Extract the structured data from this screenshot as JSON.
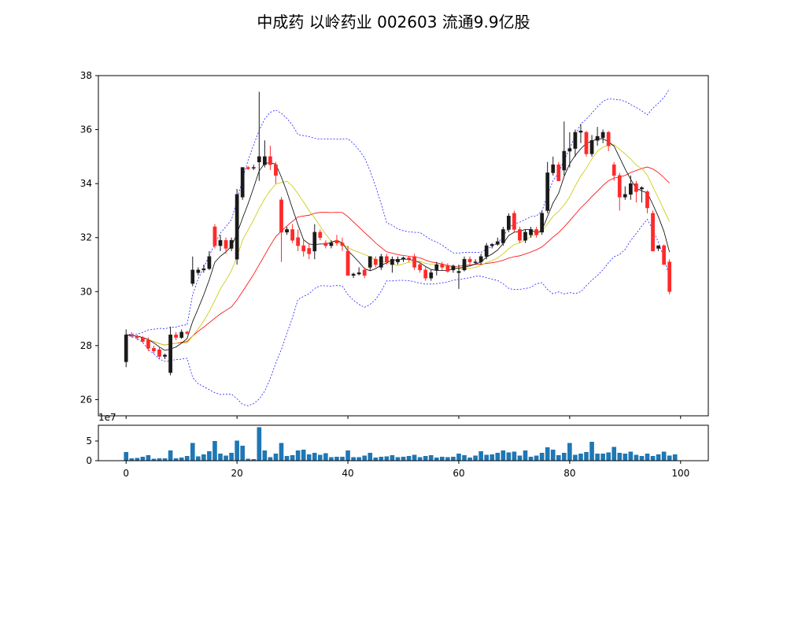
{
  "chart_data": [
    {
      "type": "candlestick",
      "title": "中成药 以岭药业 002603 流通9.9亿股",
      "x": [
        0,
        1,
        2,
        3,
        4,
        5,
        6,
        7,
        8,
        9,
        10,
        11,
        12,
        13,
        14,
        15,
        16,
        17,
        18,
        19,
        20,
        21,
        22,
        23,
        24,
        25,
        26,
        27,
        28,
        29,
        30,
        31,
        32,
        33,
        34,
        35,
        36,
        37,
        38,
        39,
        40,
        41,
        42,
        43,
        44,
        45,
        46,
        47,
        48,
        49,
        50,
        51,
        52,
        53,
        54,
        55,
        56,
        57,
        58,
        59,
        60,
        61,
        62,
        63,
        64,
        65,
        66,
        67,
        68,
        69,
        70,
        71,
        72,
        73,
        74,
        75,
        76,
        77,
        78,
        79,
        80,
        81,
        82,
        83,
        84,
        85,
        86,
        87,
        88,
        89,
        90,
        91,
        92,
        93,
        94,
        95,
        96,
        97,
        98,
        99
      ],
      "candles": [
        {
          "o": 27.4,
          "h": 28.6,
          "l": 27.2,
          "c": 28.4
        },
        {
          "o": 28.4,
          "h": 28.5,
          "l": 28.3,
          "c": 28.35
        },
        {
          "o": 28.35,
          "h": 28.4,
          "l": 28.2,
          "c": 28.3
        },
        {
          "o": 28.3,
          "h": 28.35,
          "l": 28.1,
          "c": 28.15
        },
        {
          "o": 28.2,
          "h": 28.3,
          "l": 27.8,
          "c": 27.9
        },
        {
          "o": 27.9,
          "h": 28.0,
          "l": 27.7,
          "c": 27.8
        },
        {
          "o": 27.85,
          "h": 27.95,
          "l": 27.5,
          "c": 27.6
        },
        {
          "o": 27.6,
          "h": 27.7,
          "l": 27.5,
          "c": 27.65
        },
        {
          "o": 27.0,
          "h": 28.7,
          "l": 26.9,
          "c": 28.4
        },
        {
          "o": 28.4,
          "h": 28.5,
          "l": 28.2,
          "c": 28.3
        },
        {
          "o": 28.3,
          "h": 28.6,
          "l": 28.25,
          "c": 28.5
        },
        {
          "o": 28.5,
          "h": 28.55,
          "l": 28.4,
          "c": 28.45
        },
        {
          "o": 30.3,
          "h": 31.3,
          "l": 30.2,
          "c": 30.8
        },
        {
          "o": 30.7,
          "h": 30.9,
          "l": 30.6,
          "c": 30.8
        },
        {
          "o": 30.8,
          "h": 31.0,
          "l": 30.7,
          "c": 30.85
        },
        {
          "o": 30.85,
          "h": 31.5,
          "l": 30.8,
          "c": 31.3
        },
        {
          "o": 32.4,
          "h": 32.5,
          "l": 31.6,
          "c": 31.7
        },
        {
          "o": 31.7,
          "h": 32.1,
          "l": 31.5,
          "c": 31.9
        },
        {
          "o": 31.9,
          "h": 32.0,
          "l": 31.4,
          "c": 31.6
        },
        {
          "o": 31.6,
          "h": 32.0,
          "l": 31.5,
          "c": 31.9
        },
        {
          "o": 31.2,
          "h": 33.8,
          "l": 31.0,
          "c": 33.6
        },
        {
          "o": 33.5,
          "h": 34.6,
          "l": 33.4,
          "c": 34.6
        },
        {
          "o": 34.6,
          "h": 34.65,
          "l": 34.5,
          "c": 34.55
        },
        {
          "o": 34.6,
          "h": 34.7,
          "l": 34.5,
          "c": 34.6
        },
        {
          "o": 34.8,
          "h": 37.4,
          "l": 34.1,
          "c": 35.0
        },
        {
          "o": 34.7,
          "h": 35.6,
          "l": 34.6,
          "c": 35.0
        },
        {
          "o": 35.0,
          "h": 35.4,
          "l": 34.5,
          "c": 34.7
        },
        {
          "o": 34.7,
          "h": 34.8,
          "l": 34.0,
          "c": 34.3
        },
        {
          "o": 33.4,
          "h": 33.5,
          "l": 31.1,
          "c": 32.2
        },
        {
          "o": 32.2,
          "h": 32.4,
          "l": 32.1,
          "c": 32.3
        },
        {
          "o": 32.3,
          "h": 32.5,
          "l": 31.8,
          "c": 31.9
        },
        {
          "o": 32.0,
          "h": 32.3,
          "l": 31.5,
          "c": 31.7
        },
        {
          "o": 31.7,
          "h": 31.9,
          "l": 31.3,
          "c": 31.5
        },
        {
          "o": 31.6,
          "h": 31.8,
          "l": 31.2,
          "c": 31.4
        },
        {
          "o": 31.5,
          "h": 32.5,
          "l": 31.2,
          "c": 32.2
        },
        {
          "o": 32.2,
          "h": 32.3,
          "l": 31.9,
          "c": 32.0
        },
        {
          "o": 31.8,
          "h": 31.9,
          "l": 31.6,
          "c": 31.7
        },
        {
          "o": 31.7,
          "h": 31.9,
          "l": 31.6,
          "c": 31.8
        },
        {
          "o": 31.9,
          "h": 32.1,
          "l": 31.7,
          "c": 31.8
        },
        {
          "o": 31.8,
          "h": 32.0,
          "l": 31.5,
          "c": 31.7
        },
        {
          "o": 31.5,
          "h": 31.7,
          "l": 30.6,
          "c": 30.6
        },
        {
          "o": 30.6,
          "h": 30.7,
          "l": 30.5,
          "c": 30.65
        },
        {
          "o": 30.65,
          "h": 30.9,
          "l": 30.6,
          "c": 30.7
        },
        {
          "o": 30.8,
          "h": 30.9,
          "l": 30.5,
          "c": 30.6
        },
        {
          "o": 30.9,
          "h": 31.3,
          "l": 30.8,
          "c": 31.3
        },
        {
          "o": 31.2,
          "h": 31.3,
          "l": 30.9,
          "c": 31.0
        },
        {
          "o": 30.9,
          "h": 31.4,
          "l": 30.8,
          "c": 31.3
        },
        {
          "o": 31.3,
          "h": 31.4,
          "l": 31.0,
          "c": 31.1
        },
        {
          "o": 31.0,
          "h": 31.3,
          "l": 30.7,
          "c": 31.2
        },
        {
          "o": 31.1,
          "h": 31.3,
          "l": 31.0,
          "c": 31.2
        },
        {
          "o": 31.2,
          "h": 31.3,
          "l": 31.1,
          "c": 31.25
        },
        {
          "o": 31.25,
          "h": 31.3,
          "l": 31.1,
          "c": 31.2
        },
        {
          "o": 31.3,
          "h": 31.4,
          "l": 30.8,
          "c": 30.9
        },
        {
          "o": 31.0,
          "h": 31.1,
          "l": 30.7,
          "c": 30.8
        },
        {
          "o": 30.8,
          "h": 30.9,
          "l": 30.4,
          "c": 30.5
        },
        {
          "o": 30.5,
          "h": 30.8,
          "l": 30.4,
          "c": 30.7
        },
        {
          "o": 30.8,
          "h": 31.1,
          "l": 30.6,
          "c": 31.0
        },
        {
          "o": 31.0,
          "h": 31.1,
          "l": 30.8,
          "c": 30.9
        },
        {
          "o": 30.95,
          "h": 31.05,
          "l": 30.7,
          "c": 30.75
        },
        {
          "o": 30.8,
          "h": 31.0,
          "l": 30.7,
          "c": 30.95
        },
        {
          "o": 30.7,
          "h": 31.0,
          "l": 30.1,
          "c": 30.75
        },
        {
          "o": 30.8,
          "h": 31.3,
          "l": 30.75,
          "c": 31.2
        },
        {
          "o": 31.2,
          "h": 31.3,
          "l": 31.0,
          "c": 31.1
        },
        {
          "o": 31.1,
          "h": 31.2,
          "l": 31.0,
          "c": 31.1
        },
        {
          "o": 31.1,
          "h": 31.4,
          "l": 31.0,
          "c": 31.3
        },
        {
          "o": 31.3,
          "h": 31.8,
          "l": 31.2,
          "c": 31.7
        },
        {
          "o": 31.7,
          "h": 31.8,
          "l": 31.6,
          "c": 31.75
        },
        {
          "o": 31.75,
          "h": 32.0,
          "l": 31.7,
          "c": 31.85
        },
        {
          "o": 31.8,
          "h": 32.4,
          "l": 31.7,
          "c": 32.3
        },
        {
          "o": 32.3,
          "h": 32.9,
          "l": 32.2,
          "c": 32.8
        },
        {
          "o": 32.9,
          "h": 33.0,
          "l": 32.2,
          "c": 32.3
        },
        {
          "o": 32.3,
          "h": 32.4,
          "l": 31.8,
          "c": 31.9
        },
        {
          "o": 31.9,
          "h": 32.3,
          "l": 31.8,
          "c": 32.2
        },
        {
          "o": 32.1,
          "h": 32.4,
          "l": 32.0,
          "c": 32.3
        },
        {
          "o": 32.3,
          "h": 32.4,
          "l": 32.0,
          "c": 32.1
        },
        {
          "o": 32.2,
          "h": 33.0,
          "l": 32.1,
          "c": 32.9
        },
        {
          "o": 33.0,
          "h": 34.8,
          "l": 32.9,
          "c": 34.4
        },
        {
          "o": 34.4,
          "h": 35.0,
          "l": 34.3,
          "c": 34.7
        },
        {
          "o": 34.7,
          "h": 34.8,
          "l": 34.1,
          "c": 34.1
        },
        {
          "o": 34.5,
          "h": 36.3,
          "l": 34.3,
          "c": 35.2
        },
        {
          "o": 35.2,
          "h": 35.9,
          "l": 34.6,
          "c": 35.3
        },
        {
          "o": 35.3,
          "h": 36.0,
          "l": 35.0,
          "c": 35.9
        },
        {
          "o": 35.9,
          "h": 36.2,
          "l": 35.5,
          "c": 35.95
        },
        {
          "o": 35.9,
          "h": 35.95,
          "l": 35.0,
          "c": 35.1
        },
        {
          "o": 35.1,
          "h": 35.8,
          "l": 35.0,
          "c": 35.6
        },
        {
          "o": 35.6,
          "h": 36.1,
          "l": 35.4,
          "c": 35.75
        },
        {
          "o": 35.7,
          "h": 36.0,
          "l": 35.5,
          "c": 35.9
        },
        {
          "o": 35.9,
          "h": 35.95,
          "l": 35.2,
          "c": 35.4
        },
        {
          "o": 34.7,
          "h": 34.8,
          "l": 34.1,
          "c": 34.3
        },
        {
          "o": 34.3,
          "h": 34.4,
          "l": 33.0,
          "c": 33.5
        },
        {
          "o": 33.5,
          "h": 33.9,
          "l": 33.4,
          "c": 33.6
        },
        {
          "o": 33.6,
          "h": 34.3,
          "l": 33.4,
          "c": 34.0
        },
        {
          "o": 34.0,
          "h": 34.1,
          "l": 33.3,
          "c": 33.7
        },
        {
          "o": 33.8,
          "h": 33.9,
          "l": 33.3,
          "c": 33.85
        },
        {
          "o": 33.7,
          "h": 33.75,
          "l": 32.9,
          "c": 33.1
        },
        {
          "o": 32.9,
          "h": 33.0,
          "l": 31.5,
          "c": 31.5
        },
        {
          "o": 31.6,
          "h": 31.7,
          "l": 31.5,
          "c": 31.7
        },
        {
          "o": 31.7,
          "h": 31.75,
          "l": 31.0,
          "c": 31.0
        },
        {
          "o": 31.1,
          "h": 31.2,
          "l": 29.9,
          "c": 30.0
        }
      ],
      "ylim": [
        25.4,
        38.0
      ],
      "xlim": [
        -5,
        105
      ],
      "yticks": [
        26,
        28,
        30,
        32,
        34,
        36
      ],
      "xticks": [
        0,
        20,
        40,
        60,
        80,
        100
      ],
      "colors": {
        "up": "#1a1a1a",
        "down": "#ff2a2a",
        "ma5": "#000000",
        "ma10": "#c8c800",
        "ma20": "#ff0000",
        "band": "#2020ff"
      }
    },
    {
      "type": "bar",
      "name": "volume",
      "multiplier_label": "1e7",
      "values": [
        2.2,
        0.6,
        0.7,
        1.0,
        1.4,
        0.5,
        0.6,
        0.6,
        2.6,
        0.6,
        0.8,
        1.2,
        4.5,
        1.1,
        1.6,
        2.4,
        5.0,
        1.8,
        1.3,
        2.0,
        5.1,
        3.8,
        0.5,
        0.4,
        8.5,
        2.6,
        0.9,
        1.8,
        4.5,
        1.2,
        1.4,
        2.6,
        2.8,
        1.6,
        2.0,
        1.5,
        1.9,
        0.9,
        1.0,
        1.0,
        2.6,
        0.9,
        0.9,
        1.3,
        2.0,
        0.8,
        1.0,
        1.1,
        1.4,
        0.9,
        1.0,
        1.2,
        1.5,
        0.9,
        1.2,
        1.4,
        0.8,
        1.0,
        0.9,
        1.0,
        1.8,
        1.4,
        0.8,
        1.3,
        2.4,
        1.5,
        1.6,
        2.0,
        2.6,
        2.1,
        2.3,
        1.3,
        2.6,
        1.0,
        1.3,
        2.0,
        3.4,
        2.8,
        1.4,
        2.0,
        4.5,
        1.5,
        1.8,
        2.2,
        4.8,
        1.8,
        1.8,
        2.1,
        3.5,
        2.0,
        1.8,
        2.3,
        1.5,
        1.2,
        1.8,
        1.2,
        1.6,
        2.3,
        1.3,
        1.6
      ],
      "ylim": [
        0,
        9
      ],
      "yticks": [
        0,
        5
      ],
      "xticks": [
        0,
        20,
        40,
        60,
        80,
        100
      ],
      "color": "#1f77b4"
    }
  ]
}
